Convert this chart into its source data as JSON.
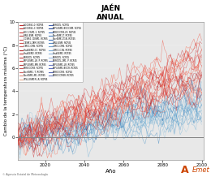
{
  "title": "JAÉN",
  "subtitle": "ANUAL",
  "xlabel": "Año",
  "ylabel": "Cambio de la temperatura máxima (°C)",
  "xlim": [
    2006,
    2101
  ],
  "ylim": [
    -2,
    10
  ],
  "yticks": [
    0,
    2,
    4,
    6,
    8,
    10
  ],
  "xticks": [
    2020,
    2040,
    2060,
    2080,
    2100
  ],
  "start_year": 2006,
  "end_year": 2100,
  "n_red_series": 22,
  "n_blue_series": 18,
  "bg_color": "#e8e8e8",
  "legend_entries_left": [
    [
      "#c03030",
      "ACCESS1-0. RCP85"
    ],
    [
      "#c83838",
      "ACCESS1-3. RCP85"
    ],
    [
      "#d04040",
      "BCC-CSM1-1. RCP85"
    ],
    [
      "#c04848",
      "BNU-ESM. RCP85"
    ],
    [
      "#c85050",
      "CCSM4. CESM1. RCP85"
    ],
    [
      "#d05858",
      "CESM1-CAM. RCP85"
    ],
    [
      "#c86060",
      "CMCC-CMS. RCP85"
    ],
    [
      "#b83030",
      "HadGEM2-CC. RCP85"
    ],
    [
      "#c03838",
      "HadGEM2. RCP85"
    ],
    [
      "#c84040",
      "MIROC5. RCP85"
    ],
    [
      "#d04848",
      "MPI-ESM1-LR. P. RCP85"
    ],
    [
      "#b84040",
      "MPI-ESM1-MR. RCP85"
    ],
    [
      "#c85858",
      "MRICGCM3. RCP85"
    ],
    [
      "#d06060",
      "NorESM1. T. RCP85"
    ],
    [
      "#e09080",
      "NorESM1-M1. RCP85"
    ],
    [
      "#e8b090",
      "IPSL-ESM1R-LR. RCP85"
    ]
  ],
  "legend_entries_right": [
    [
      "#4060b0",
      "MIROC5. RCP45"
    ],
    [
      "#3050a0",
      "MPI-ESM1-BGCCHM. RCP45"
    ],
    [
      "#4070c0",
      "MRICGCM3-LR. RCP45"
    ],
    [
      "#5080c0",
      "NorESM1-T. RCP45"
    ],
    [
      "#4878b8",
      "NorESM1-T1N. RCP45"
    ],
    [
      "#6090c8",
      "BNU-ESM. RCP45"
    ],
    [
      "#70a0d0",
      "CMCC-CMS. RCP45"
    ],
    [
      "#80b0d8",
      "CMCC-C1N. RCP45"
    ],
    [
      "#90b8e0",
      "HadGEM2. RCP45"
    ],
    [
      "#a0c0e8",
      "MIROC5. RCP45"
    ],
    [
      "#8090d0",
      "MIROC5-2M1. P. RCP45"
    ],
    [
      "#7080c8",
      "MPI-ESM1-LR. RCP45"
    ],
    [
      "#6070c0",
      "MPI-ESM1-BGCR. RCP45"
    ],
    [
      "#5868b8",
      "MRICGCM3. RCP45"
    ],
    [
      "#7888c8",
      "MRICGCM3R. RCP45"
    ]
  ],
  "footer_text": "© Agencia Estatal de Meteorología"
}
